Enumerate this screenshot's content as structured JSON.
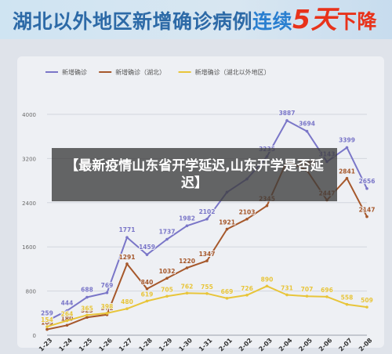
{
  "header": {
    "title_part1": "湖北以外地区新增确诊病例",
    "title_part2": "连续",
    "title_part3": "5天",
    "title_part4": "下降"
  },
  "overlay": {
    "text": "【最新疫情山东省开学延迟,山东开学是否延迟】"
  },
  "colors": {
    "series_total": "#7a76c8",
    "series_hubei": "#a6582b",
    "series_outside": "#e8c53a",
    "grid": "#d2d6de",
    "axis_text": "#6a6a6a"
  },
  "chart_data": {
    "type": "line",
    "title": "",
    "xlabel": "",
    "ylabel": "",
    "ylim": [
      0,
      4000
    ],
    "yticks": [
      0,
      800,
      1600,
      2400,
      3200,
      4000
    ],
    "grid": true,
    "legend_position": "top-left",
    "categories": [
      "1-23",
      "1-24",
      "1-25",
      "1-26",
      "1-27",
      "1-28",
      "1-29",
      "1-30",
      "1-31",
      "2-01",
      "2-02",
      "2-03",
      "2-04",
      "2-05",
      "2-06",
      "2-07",
      "2-08"
    ],
    "series": [
      {
        "name": "新增确诊",
        "color": "#7a76c8",
        "values": [
          259,
          444,
          688,
          769,
          1771,
          1459,
          1737,
          1982,
          2102,
          2590,
          2829,
          3235,
          3887,
          3694,
          3143,
          3399,
          2656
        ],
        "labels": [
          "259",
          "444",
          "688",
          "769",
          "1771",
          "1459",
          "1737",
          "1982",
          "2102",
          null,
          null,
          "3235",
          "3887",
          "3694",
          "3143",
          "3399",
          "2656"
        ]
      },
      {
        "name": "新增确诊（湖北）",
        "color": "#a6582b",
        "values": [
          105,
          180,
          323,
          371,
          1291,
          840,
          1032,
          1220,
          1347,
          1921,
          2103,
          2345,
          3156,
          2987,
          2447,
          2841,
          2147
        ],
        "labels": [
          "105",
          "180",
          "323",
          "371",
          "1291",
          "840",
          "1032",
          "1220",
          "1347",
          "1921",
          "2103",
          "2345",
          null,
          "2987",
          "2447",
          "2841",
          "2147"
        ]
      },
      {
        "name": "新增确诊（湖北以外地区）",
        "color": "#e8c53a",
        "values": [
          154,
          264,
          365,
          398,
          480,
          619,
          705,
          762,
          755,
          669,
          726,
          890,
          731,
          707,
          696,
          558,
          509
        ],
        "labels": [
          "154",
          "264",
          "365",
          "398",
          "480",
          "619",
          "705",
          "762",
          "755",
          "669",
          "726",
          "890",
          "731",
          "707",
          "696",
          "558",
          "509"
        ]
      }
    ]
  }
}
